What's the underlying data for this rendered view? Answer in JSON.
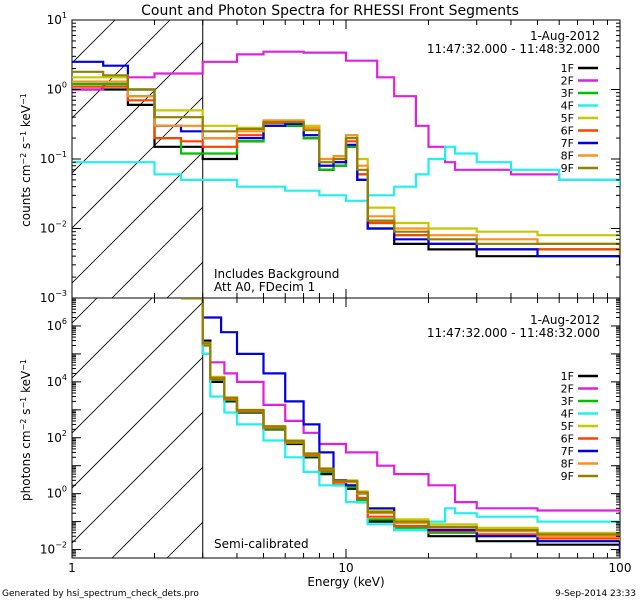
{
  "title": "Count and Photon Spectra for RHESSI Front Segments",
  "footer": {
    "generated_by": "Generated by hsi_spectrum_check_dets.pro",
    "date": "9-Sep-2014 23:33"
  },
  "xlabel": "Energy (keV)",
  "colors": {
    "1F": "#000000",
    "2F": "#e020e0",
    "3F": "#00c000",
    "4F": "#20f0f0",
    "5F": "#c8c800",
    "6F": "#ff4000",
    "7F": "#0000e0",
    "8F": "#ff9020",
    "9F": "#908000"
  },
  "chart_data": [
    {
      "type": "line",
      "panel": "top",
      "title": "Count and Photon Spectra for RHESSI Front Segments",
      "xlabel": "",
      "ylabel": "counts cm^-2 s^-1 keV^-1",
      "xscale": "log",
      "yscale": "log",
      "xlim": [
        1,
        100
      ],
      "ylim": [
        0.001,
        10
      ],
      "x_ticks": [
        "1",
        "10",
        "100"
      ],
      "y_ticks": [
        "10^-3",
        "10^-2",
        "10^-1",
        "10^0",
        "10^1"
      ],
      "date": "1-Aug-2012",
      "time_range": "11:47:32.000 - 11:48:32.000",
      "annotations": [
        "Includes Background",
        "Att A0, FDecim 1"
      ],
      "vline_x": 3,
      "legend": [
        "1F",
        "2F",
        "3F",
        "4F",
        "5F",
        "6F",
        "7F",
        "8F",
        "9F"
      ],
      "series": [
        {
          "name": "1F",
          "x": [
            1,
            1.3,
            1.6,
            2,
            2.5,
            3,
            4,
            5,
            6,
            7,
            8,
            9,
            10,
            11,
            12,
            15,
            20,
            30,
            50,
            100
          ],
          "y": [
            1.0,
            1.0,
            0.6,
            0.15,
            0.15,
            0.1,
            0.18,
            0.3,
            0.3,
            0.2,
            0.07,
            0.08,
            0.15,
            0.05,
            0.01,
            0.006,
            0.005,
            0.004,
            0.004,
            0.003
          ]
        },
        {
          "name": "2F",
          "x": [
            1,
            1.3,
            1.6,
            2,
            3,
            4,
            5,
            7,
            10,
            13,
            15,
            18,
            20,
            23,
            25,
            30,
            40,
            60,
            100
          ],
          "y": [
            1.0,
            1.2,
            1.5,
            1.7,
            2.5,
            3.2,
            3.5,
            3.4,
            2.6,
            1.5,
            0.8,
            0.3,
            0.15,
            0.09,
            0.07,
            0.07,
            0.06,
            0.05,
            0.04
          ]
        },
        {
          "name": "3F",
          "x": [
            1,
            1.3,
            1.6,
            2,
            2.5,
            3,
            4,
            5,
            6,
            7,
            8,
            9,
            10,
            11,
            12,
            15,
            20,
            30,
            50,
            100
          ],
          "y": [
            1.2,
            1.2,
            0.8,
            0.2,
            0.12,
            0.12,
            0.18,
            0.3,
            0.3,
            0.2,
            0.07,
            0.08,
            0.15,
            0.06,
            0.012,
            0.008,
            0.006,
            0.005,
            0.005,
            0.004
          ]
        },
        {
          "name": "4F",
          "x": [
            1,
            1.5,
            2,
            2.5,
            3,
            4,
            6,
            8,
            10,
            12,
            15,
            18,
            20,
            23,
            25,
            30,
            40,
            60,
            100
          ],
          "y": [
            0.09,
            0.09,
            0.06,
            0.05,
            0.05,
            0.04,
            0.035,
            0.03,
            0.025,
            0.03,
            0.04,
            0.06,
            0.1,
            0.15,
            0.12,
            0.09,
            0.07,
            0.05,
            0.04
          ]
        },
        {
          "name": "5F",
          "x": [
            1,
            1.3,
            1.6,
            2,
            2.5,
            3,
            4,
            5,
            6,
            7,
            8,
            9,
            10,
            11,
            12,
            15,
            20,
            30,
            50,
            100
          ],
          "y": [
            1.5,
            1.5,
            1.0,
            0.5,
            0.5,
            0.3,
            0.28,
            0.35,
            0.35,
            0.3,
            0.1,
            0.1,
            0.22,
            0.1,
            0.02,
            0.012,
            0.01,
            0.009,
            0.008,
            0.007
          ]
        },
        {
          "name": "6F",
          "x": [
            1,
            1.3,
            1.6,
            2,
            2.5,
            3,
            4,
            5,
            6,
            7,
            8,
            9,
            10,
            11,
            12,
            15,
            20,
            30,
            50,
            100
          ],
          "y": [
            1.1,
            1.1,
            0.7,
            0.2,
            0.18,
            0.15,
            0.22,
            0.33,
            0.33,
            0.22,
            0.08,
            0.09,
            0.18,
            0.06,
            0.012,
            0.008,
            0.006,
            0.005,
            0.005,
            0.004
          ]
        },
        {
          "name": "7F",
          "x": [
            1,
            1.3,
            1.6,
            2,
            2.5,
            3,
            4,
            5,
            6,
            7,
            8,
            9,
            10,
            11,
            12,
            15,
            20,
            30,
            50,
            100
          ],
          "y": [
            2.5,
            2.2,
            1.0,
            0.3,
            0.25,
            0.2,
            0.2,
            0.3,
            0.32,
            0.22,
            0.08,
            0.09,
            0.16,
            0.05,
            0.01,
            0.007,
            0.006,
            0.005,
            0.004,
            0.004
          ]
        },
        {
          "name": "8F",
          "x": [
            1,
            1.3,
            1.6,
            2,
            2.5,
            3,
            4,
            5,
            6,
            7,
            8,
            9,
            10,
            11,
            12,
            15,
            20,
            30,
            50,
            100
          ],
          "y": [
            1.3,
            1.3,
            0.8,
            0.3,
            0.3,
            0.2,
            0.25,
            0.36,
            0.36,
            0.28,
            0.1,
            0.11,
            0.22,
            0.08,
            0.015,
            0.01,
            0.008,
            0.007,
            0.006,
            0.005
          ]
        },
        {
          "name": "9F",
          "x": [
            1,
            1.3,
            1.6,
            2,
            2.5,
            3,
            4,
            5,
            6,
            7,
            8,
            9,
            10,
            11,
            12,
            15,
            20,
            30,
            50,
            100
          ],
          "y": [
            1.8,
            1.6,
            1.0,
            0.4,
            0.4,
            0.25,
            0.27,
            0.34,
            0.34,
            0.26,
            0.09,
            0.1,
            0.2,
            0.07,
            0.013,
            0.009,
            0.007,
            0.006,
            0.006,
            0.005
          ]
        }
      ]
    },
    {
      "type": "line",
      "panel": "bottom",
      "xlabel": "Energy (keV)",
      "ylabel": "photons cm^-2 s^-1 keV^-1",
      "xscale": "log",
      "yscale": "log",
      "xlim": [
        1,
        100
      ],
      "ylim": [
        0.005,
        10000000
      ],
      "x_ticks": [
        "1",
        "10",
        "100"
      ],
      "y_ticks": [
        "10^-2",
        "10^0",
        "10^2",
        "10^4",
        "10^6"
      ],
      "date": "1-Aug-2012",
      "time_range": "11:47:32.000 - 11:48:32.000",
      "annotations": [
        "Semi-calibrated"
      ],
      "vline_x": 3,
      "legend": [
        "1F",
        "2F",
        "3F",
        "4F",
        "5F",
        "6F",
        "7F",
        "8F",
        "9F"
      ],
      "series": [
        {
          "name": "1F",
          "x": [
            2.5,
            2.7,
            3,
            3.2,
            3.6,
            4,
            5,
            6,
            7,
            8,
            9,
            10,
            11,
            12,
            15,
            20,
            30,
            50,
            100
          ],
          "y": [
            10000000,
            10000000,
            300000,
            10000,
            2000,
            800,
            200,
            60,
            20,
            5,
            2,
            1.5,
            0.5,
            0.1,
            0.05,
            0.03,
            0.02,
            0.015,
            0.008
          ]
        },
        {
          "name": "2F",
          "x": [
            2.5,
            2.7,
            3,
            3.2,
            3.6,
            4,
            5,
            6,
            7,
            8,
            10,
            13,
            15,
            20,
            25,
            30,
            50,
            100
          ],
          "y": [
            10000000,
            10000000,
            100000,
            50000,
            20000,
            10000,
            1500,
            400,
            150,
            60,
            30,
            10,
            5,
            2,
            0.5,
            0.3,
            0.25,
            0.2
          ]
        },
        {
          "name": "3F",
          "x": [
            2.5,
            2.7,
            3,
            3.2,
            3.6,
            4,
            5,
            6,
            7,
            8,
            9,
            10,
            11,
            12,
            15,
            20,
            30,
            50,
            100
          ],
          "y": [
            10000000,
            10000000,
            200000,
            12000,
            2200,
            850,
            210,
            65,
            22,
            6,
            2,
            1.7,
            0.6,
            0.12,
            0.06,
            0.04,
            0.03,
            0.02,
            0.01
          ]
        },
        {
          "name": "4F",
          "x": [
            2.5,
            2.7,
            3,
            3.2,
            3.6,
            4,
            5,
            6,
            7,
            8,
            10,
            12,
            15,
            20,
            23,
            25,
            30,
            50,
            100
          ],
          "y": [
            10000000,
            10000000,
            100000,
            3000,
            800,
            300,
            80,
            20,
            6,
            2,
            0.5,
            0.08,
            0.05,
            0.1,
            0.3,
            0.2,
            0.15,
            0.1,
            0.08
          ]
        },
        {
          "name": "5F",
          "x": [
            2.5,
            2.7,
            3,
            3.2,
            3.6,
            4,
            5,
            6,
            7,
            8,
            9,
            10,
            11,
            12,
            15,
            20,
            30,
            50,
            100
          ],
          "y": [
            10000000,
            10000000,
            250000,
            15000,
            2800,
            1000,
            260,
            80,
            28,
            8,
            3,
            3,
            1.2,
            0.25,
            0.12,
            0.08,
            0.06,
            0.04,
            0.03
          ]
        },
        {
          "name": "6F",
          "x": [
            2.5,
            2.7,
            3,
            3.2,
            3.6,
            4,
            5,
            6,
            7,
            8,
            9,
            10,
            11,
            12,
            15,
            20,
            30,
            50,
            100
          ],
          "y": [
            10000000,
            10000000,
            220000,
            13000,
            2400,
            900,
            230,
            70,
            24,
            7,
            2.5,
            2.0,
            0.7,
            0.15,
            0.07,
            0.045,
            0.035,
            0.025,
            0.012
          ]
        },
        {
          "name": "7F",
          "x": [
            2.5,
            2.7,
            3,
            3.5,
            4,
            5,
            6,
            7,
            8,
            9,
            10,
            11,
            12,
            15,
            20,
            30,
            50,
            100
          ],
          "y": [
            10000000,
            10000000,
            2000000,
            600000,
            100000,
            20000,
            2000,
            300,
            30,
            3,
            2,
            1,
            0.3,
            0.1,
            0.05,
            0.03,
            0.02,
            0.01
          ]
        },
        {
          "name": "8F",
          "x": [
            2.5,
            2.7,
            3,
            3.2,
            3.6,
            4,
            5,
            6,
            7,
            8,
            9,
            10,
            11,
            12,
            15,
            20,
            30,
            50,
            100
          ],
          "y": [
            10000000,
            10000000,
            230000,
            14000,
            2600,
            950,
            250,
            75,
            26,
            7.5,
            2.8,
            2.6,
            1.0,
            0.2,
            0.09,
            0.06,
            0.045,
            0.03,
            0.02
          ]
        },
        {
          "name": "9F",
          "x": [
            2.5,
            2.7,
            3,
            3.2,
            3.6,
            4,
            5,
            6,
            7,
            8,
            9,
            10,
            11,
            12,
            15,
            20,
            30,
            50,
            100
          ],
          "y": [
            10000000,
            10000000,
            240000,
            14000,
            2700,
            980,
            255,
            78,
            27,
            7.8,
            2.9,
            2.8,
            1.1,
            0.22,
            0.1,
            0.065,
            0.05,
            0.035,
            0.025
          ]
        }
      ]
    }
  ]
}
